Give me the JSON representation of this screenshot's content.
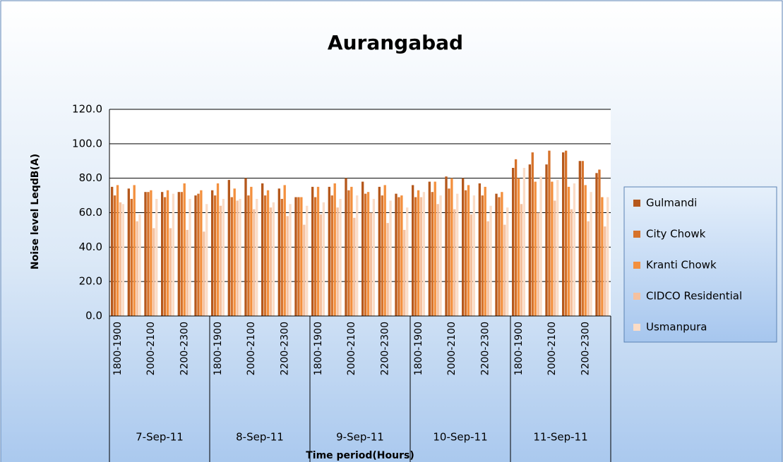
{
  "chart_data": {
    "type": "bar",
    "title": "Aurangabad",
    "y_label": "Noise level LeqdB(A)",
    "x_label": "Time period(Hours)",
    "categories": [
      "1800-1900",
      null,
      "2000-2100",
      null,
      "2200-2300",
      null,
      "1800-1900",
      null,
      "2000-2100",
      null,
      "2200-2300",
      null,
      "1800-1900",
      null,
      "2000-2100",
      null,
      "2200-2300",
      null,
      "1800-1900",
      null,
      "2000-2100",
      null,
      "2200-2300",
      null,
      "1800-1900",
      null,
      "2000-2100",
      null,
      "2200-2300",
      null
    ],
    "category_groups": [
      "7-Sep-11",
      "8-Sep-11",
      "9-Sep-11",
      "10-Sep-11",
      "11-Sep-11"
    ],
    "series": [
      {
        "name": "Gulmandi",
        "color": "#b5581c",
        "values": [
          75,
          74,
          72,
          72,
          72,
          70,
          73,
          79,
          80,
          77,
          74,
          69,
          75,
          75,
          80,
          78,
          75,
          71,
          76,
          78,
          81,
          80,
          77,
          71,
          86,
          88,
          88,
          95,
          90,
          83
        ]
      },
      {
        "name": "City Chowk",
        "color": "#d6722a",
        "values": [
          70,
          68,
          72,
          69,
          72,
          71,
          70,
          69,
          70,
          70,
          68,
          69,
          69,
          70,
          73,
          71,
          70,
          69,
          69,
          72,
          74,
          73,
          70,
          69,
          91,
          95,
          96,
          96,
          90,
          85
        ]
      },
      {
        "name": "Kranti Chowk",
        "color": "#f3903e",
        "values": [
          76,
          76,
          73,
          73,
          77,
          73,
          77,
          74,
          75,
          73,
          76,
          69,
          75,
          77,
          75,
          72,
          76,
          70,
          73,
          78,
          80,
          76,
          75,
          72,
          80,
          78,
          78,
          75,
          76,
          69
        ]
      },
      {
        "name": "CIDCO Residential",
        "color": "#f5c19f",
        "values": [
          66,
          55,
          51,
          51,
          50,
          49,
          64,
          67,
          62,
          63,
          58,
          53,
          59,
          63,
          57,
          60,
          54,
          50,
          69,
          65,
          62,
          59,
          55,
          53,
          65,
          60,
          67,
          62,
          55,
          52
        ]
      },
      {
        "name": "Usmanpura",
        "color": "#fbdcc6",
        "values": [
          65,
          59,
          68,
          71,
          68,
          65,
          68,
          68,
          68,
          66,
          65,
          64,
          66,
          68,
          70,
          68,
          67,
          63,
          72,
          70,
          71,
          70,
          64,
          63,
          86,
          81,
          79,
          77,
          72,
          69
        ]
      }
    ],
    "ylim": [
      0,
      120
    ],
    "yticks": [
      {
        "value": 0,
        "label": "0.0"
      },
      {
        "value": 20,
        "label": "20.0"
      },
      {
        "value": 40,
        "label": "40.0"
      },
      {
        "value": 60,
        "label": "60.0"
      },
      {
        "value": 80,
        "label": "80.0"
      },
      {
        "value": 100,
        "label": "100.0"
      },
      {
        "value": 120,
        "label": "120.0"
      }
    ],
    "grid": true,
    "legend": "right"
  }
}
